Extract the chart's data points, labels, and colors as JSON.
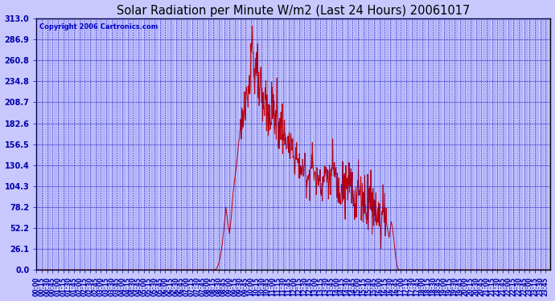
{
  "title": "Solar Radiation per Minute W/m2 (Last 24 Hours) 20061017",
  "copyright_text": "Copyright 2006 Cartronics.com",
  "background_color": "#c8c8ff",
  "plot_bg_color": "#c8c8ff",
  "line_color": "#cc0000",
  "grid_color": "#0000bb",
  "axis_color": "#0000aa",
  "tick_label_color": "#0000cc",
  "title_color": "#000000",
  "border_color": "#000000",
  "ylim": [
    0.0,
    313.0
  ],
  "yticks": [
    0.0,
    26.1,
    52.2,
    78.2,
    104.3,
    130.4,
    156.5,
    182.6,
    208.7,
    234.8,
    260.8,
    286.9,
    313.0
  ],
  "xlabel_fontsize": 5.5,
  "ylabel_fontsize": 7,
  "title_fontsize": 10.5,
  "copyright_fontsize": 6
}
